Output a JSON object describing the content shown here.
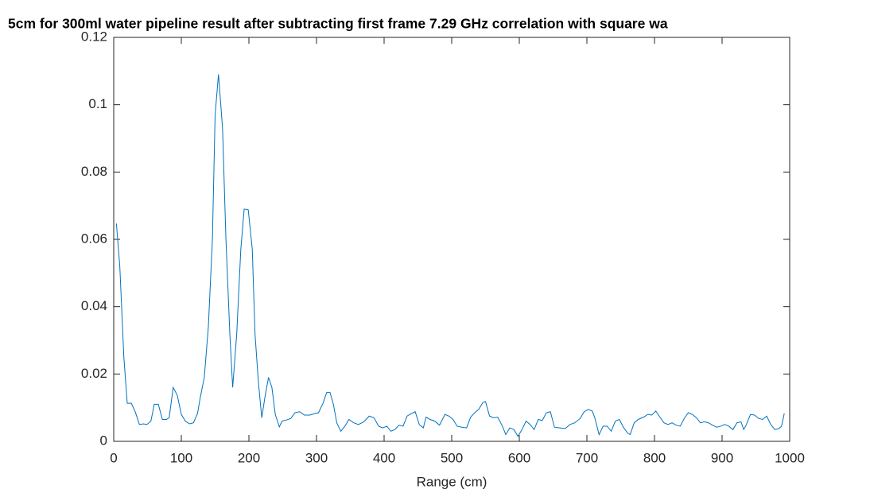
{
  "chart_data": {
    "type": "line",
    "title": "5cm for 300ml water pipeline result after subtracting first frame 7.29 GHz correlation with square wa",
    "x_label": "Range (cm)",
    "xlim": [
      0,
      1000
    ],
    "xticks": [
      0,
      100,
      200,
      300,
      400,
      500,
      600,
      700,
      800,
      900,
      1000
    ],
    "ylim": [
      0,
      0.12
    ],
    "yticks": [
      0,
      0.02,
      0.04,
      0.06,
      0.08,
      0.1,
      0.12
    ],
    "series": [
      {
        "color": "#0072bd",
        "x": [
          4,
          9,
          15,
          20,
          26,
          32,
          38,
          44,
          49,
          55,
          60,
          66,
          72,
          78,
          82,
          88,
          94,
          100,
          106,
          112,
          118,
          124,
          128,
          134,
          140,
          146,
          150,
          155,
          161,
          166,
          172,
          176,
          182,
          188,
          193,
          199,
          205,
          209,
          214,
          219,
          224,
          229,
          234,
          239,
          245,
          249,
          255,
          262,
          268,
          275,
          282,
          290,
          297,
          303,
          310,
          315,
          320,
          325,
          330,
          336,
          342,
          348,
          355,
          362,
          370,
          378,
          385,
          392,
          398,
          404,
          410,
          416,
          422,
          428,
          434,
          440,
          446,
          452,
          458,
          462,
          468,
          475,
          482,
          490,
          496,
          502,
          508,
          515,
          522,
          528,
          534,
          540,
          546,
          550,
          556,
          562,
          568,
          575,
          580,
          586,
          592,
          598,
          604,
          610,
          616,
          622,
          628,
          634,
          640,
          646,
          652,
          660,
          668,
          675,
          682,
          690,
          696,
          702,
          708,
          712,
          718,
          724,
          730,
          736,
          742,
          748,
          754,
          760,
          764,
          770,
          776,
          784,
          790,
          796,
          802,
          808,
          814,
          820,
          826,
          832,
          838,
          844,
          850,
          856,
          862,
          868,
          874,
          880,
          886,
          892,
          898,
          904,
          910,
          916,
          922,
          928,
          932,
          936,
          942,
          948,
          954,
          960,
          966,
          972,
          978,
          984,
          988,
          992
        ],
        "values": [
          0.0647,
          0.052,
          0.025,
          0.0113,
          0.0113,
          0.0087,
          0.005,
          0.0052,
          0.005,
          0.006,
          0.011,
          0.011,
          0.0065,
          0.0065,
          0.007,
          0.016,
          0.0137,
          0.008,
          0.006,
          0.0052,
          0.0055,
          0.0083,
          0.013,
          0.019,
          0.034,
          0.06,
          0.097,
          0.109,
          0.093,
          0.06,
          0.031,
          0.016,
          0.032,
          0.057,
          0.069,
          0.0688,
          0.057,
          0.032,
          0.0177,
          0.007,
          0.0135,
          0.019,
          0.016,
          0.008,
          0.0043,
          0.006,
          0.0063,
          0.0068,
          0.0085,
          0.0088,
          0.0078,
          0.0078,
          0.0082,
          0.0085,
          0.0115,
          0.0145,
          0.0145,
          0.011,
          0.0055,
          0.003,
          0.0045,
          0.0065,
          0.0055,
          0.005,
          0.0058,
          0.0075,
          0.007,
          0.0045,
          0.004,
          0.0045,
          0.003,
          0.0035,
          0.0048,
          0.0045,
          0.0075,
          0.0082,
          0.0088,
          0.005,
          0.004,
          0.0072,
          0.0065,
          0.006,
          0.0048,
          0.008,
          0.0075,
          0.0065,
          0.0045,
          0.0042,
          0.004,
          0.0072,
          0.0085,
          0.0095,
          0.0115,
          0.0118,
          0.0075,
          0.007,
          0.0072,
          0.0045,
          0.002,
          0.004,
          0.0035,
          0.0015,
          0.0035,
          0.006,
          0.005,
          0.0035,
          0.0065,
          0.0062,
          0.0085,
          0.0088,
          0.0042,
          0.004,
          0.0038,
          0.005,
          0.0055,
          0.0068,
          0.0088,
          0.0095,
          0.009,
          0.0068,
          0.002,
          0.0045,
          0.0045,
          0.003,
          0.006,
          0.0065,
          0.0042,
          0.0025,
          0.002,
          0.0055,
          0.0065,
          0.0072,
          0.008,
          0.0078,
          0.009,
          0.0072,
          0.0055,
          0.005,
          0.0055,
          0.0048,
          0.0045,
          0.0068,
          0.0085,
          0.008,
          0.007,
          0.0055,
          0.0058,
          0.0055,
          0.0048,
          0.0042,
          0.0045,
          0.005,
          0.0045,
          0.0035,
          0.0055,
          0.0058,
          0.0035,
          0.005,
          0.008,
          0.0078,
          0.0068,
          0.0065,
          0.0075,
          0.005,
          0.0035,
          0.0038,
          0.0045,
          0.0083
        ]
      }
    ]
  }
}
